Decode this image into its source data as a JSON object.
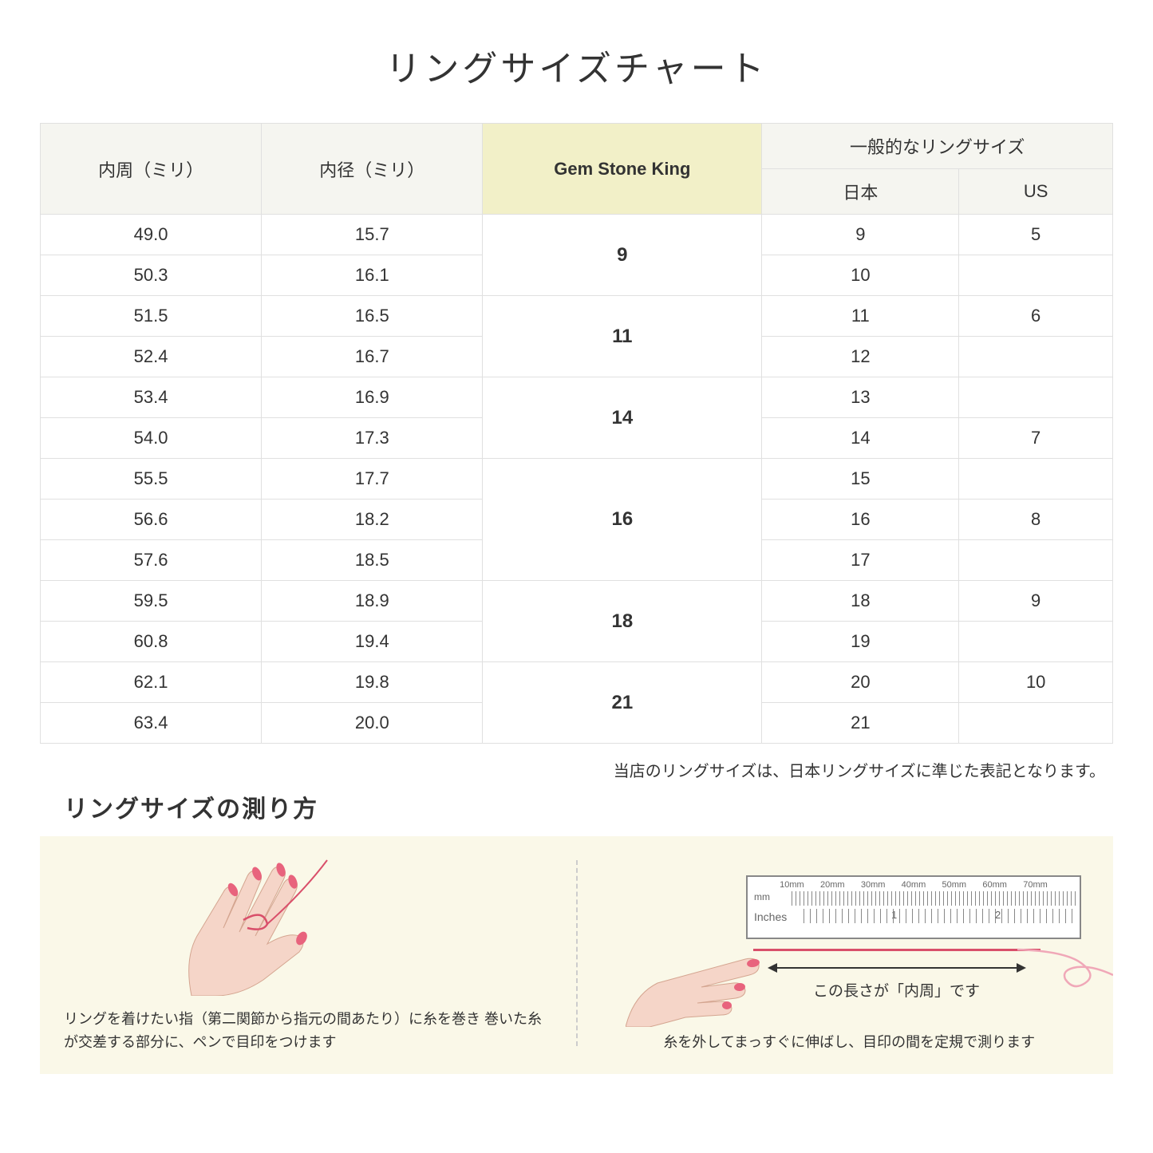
{
  "title": "リングサイズチャート",
  "headers": {
    "circumference": "内周（ミリ）",
    "diameter": "内径（ミリ）",
    "gsk": "Gem Stone King",
    "general": "一般的なリングサイズ",
    "japan": "日本",
    "us": "US"
  },
  "groups": [
    {
      "gsk": "9",
      "rows": [
        {
          "c": "49.0",
          "d": "15.7",
          "jp": "9",
          "us": "5"
        },
        {
          "c": "50.3",
          "d": "16.1",
          "jp": "10",
          "us": ""
        }
      ]
    },
    {
      "gsk": "11",
      "rows": [
        {
          "c": "51.5",
          "d": "16.5",
          "jp": "11",
          "us": "6"
        },
        {
          "c": "52.4",
          "d": "16.7",
          "jp": "12",
          "us": ""
        }
      ]
    },
    {
      "gsk": "14",
      "rows": [
        {
          "c": "53.4",
          "d": "16.9",
          "jp": "13",
          "us": ""
        },
        {
          "c": "54.0",
          "d": "17.3",
          "jp": "14",
          "us": "7"
        }
      ]
    },
    {
      "gsk": "16",
      "rows": [
        {
          "c": "55.5",
          "d": "17.7",
          "jp": "15",
          "us": ""
        },
        {
          "c": "56.6",
          "d": "18.2",
          "jp": "16",
          "us": "8"
        },
        {
          "c": "57.6",
          "d": "18.5",
          "jp": "17",
          "us": ""
        }
      ]
    },
    {
      "gsk": "18",
      "rows": [
        {
          "c": "59.5",
          "d": "18.9",
          "jp": "18",
          "us": "9"
        },
        {
          "c": "60.8",
          "d": "19.4",
          "jp": "19",
          "us": ""
        }
      ]
    },
    {
      "gsk": "21",
      "rows": [
        {
          "c": "62.1",
          "d": "19.8",
          "jp": "20",
          "us": "10"
        },
        {
          "c": "63.4",
          "d": "20.0",
          "jp": "21",
          "us": ""
        }
      ]
    }
  ],
  "note": "当店のリングサイズは、日本リングサイズに準じた表記となります。",
  "howto": {
    "title": "リングサイズの測り方",
    "left_caption": "リングを着けたい指（第二関節から指元の間あたり）に糸を巻き\n巻いた糸が交差する部分に、ペンで目印をつけます",
    "right_caption": "糸を外してまっすぐに伸ばし、目印の間を定規で測ります",
    "arrow_label": "この長さが「内周」です",
    "ruler_mm": "mm",
    "ruler_inches": "Inches",
    "ruler_mm_labels": [
      "10mm",
      "20mm",
      "30mm",
      "40mm",
      "50mm",
      "60mm",
      "70mm"
    ],
    "ruler_inch_labels": [
      "1",
      "2"
    ]
  },
  "colors": {
    "header_bg": "#f5f5f0",
    "highlight_bg": "#f2f0c8",
    "border": "#e0e0e0",
    "howto_bg": "#faf8e8",
    "thread": "#d94f6a",
    "skin": "#f5d5c8",
    "nail": "#e8637d"
  }
}
